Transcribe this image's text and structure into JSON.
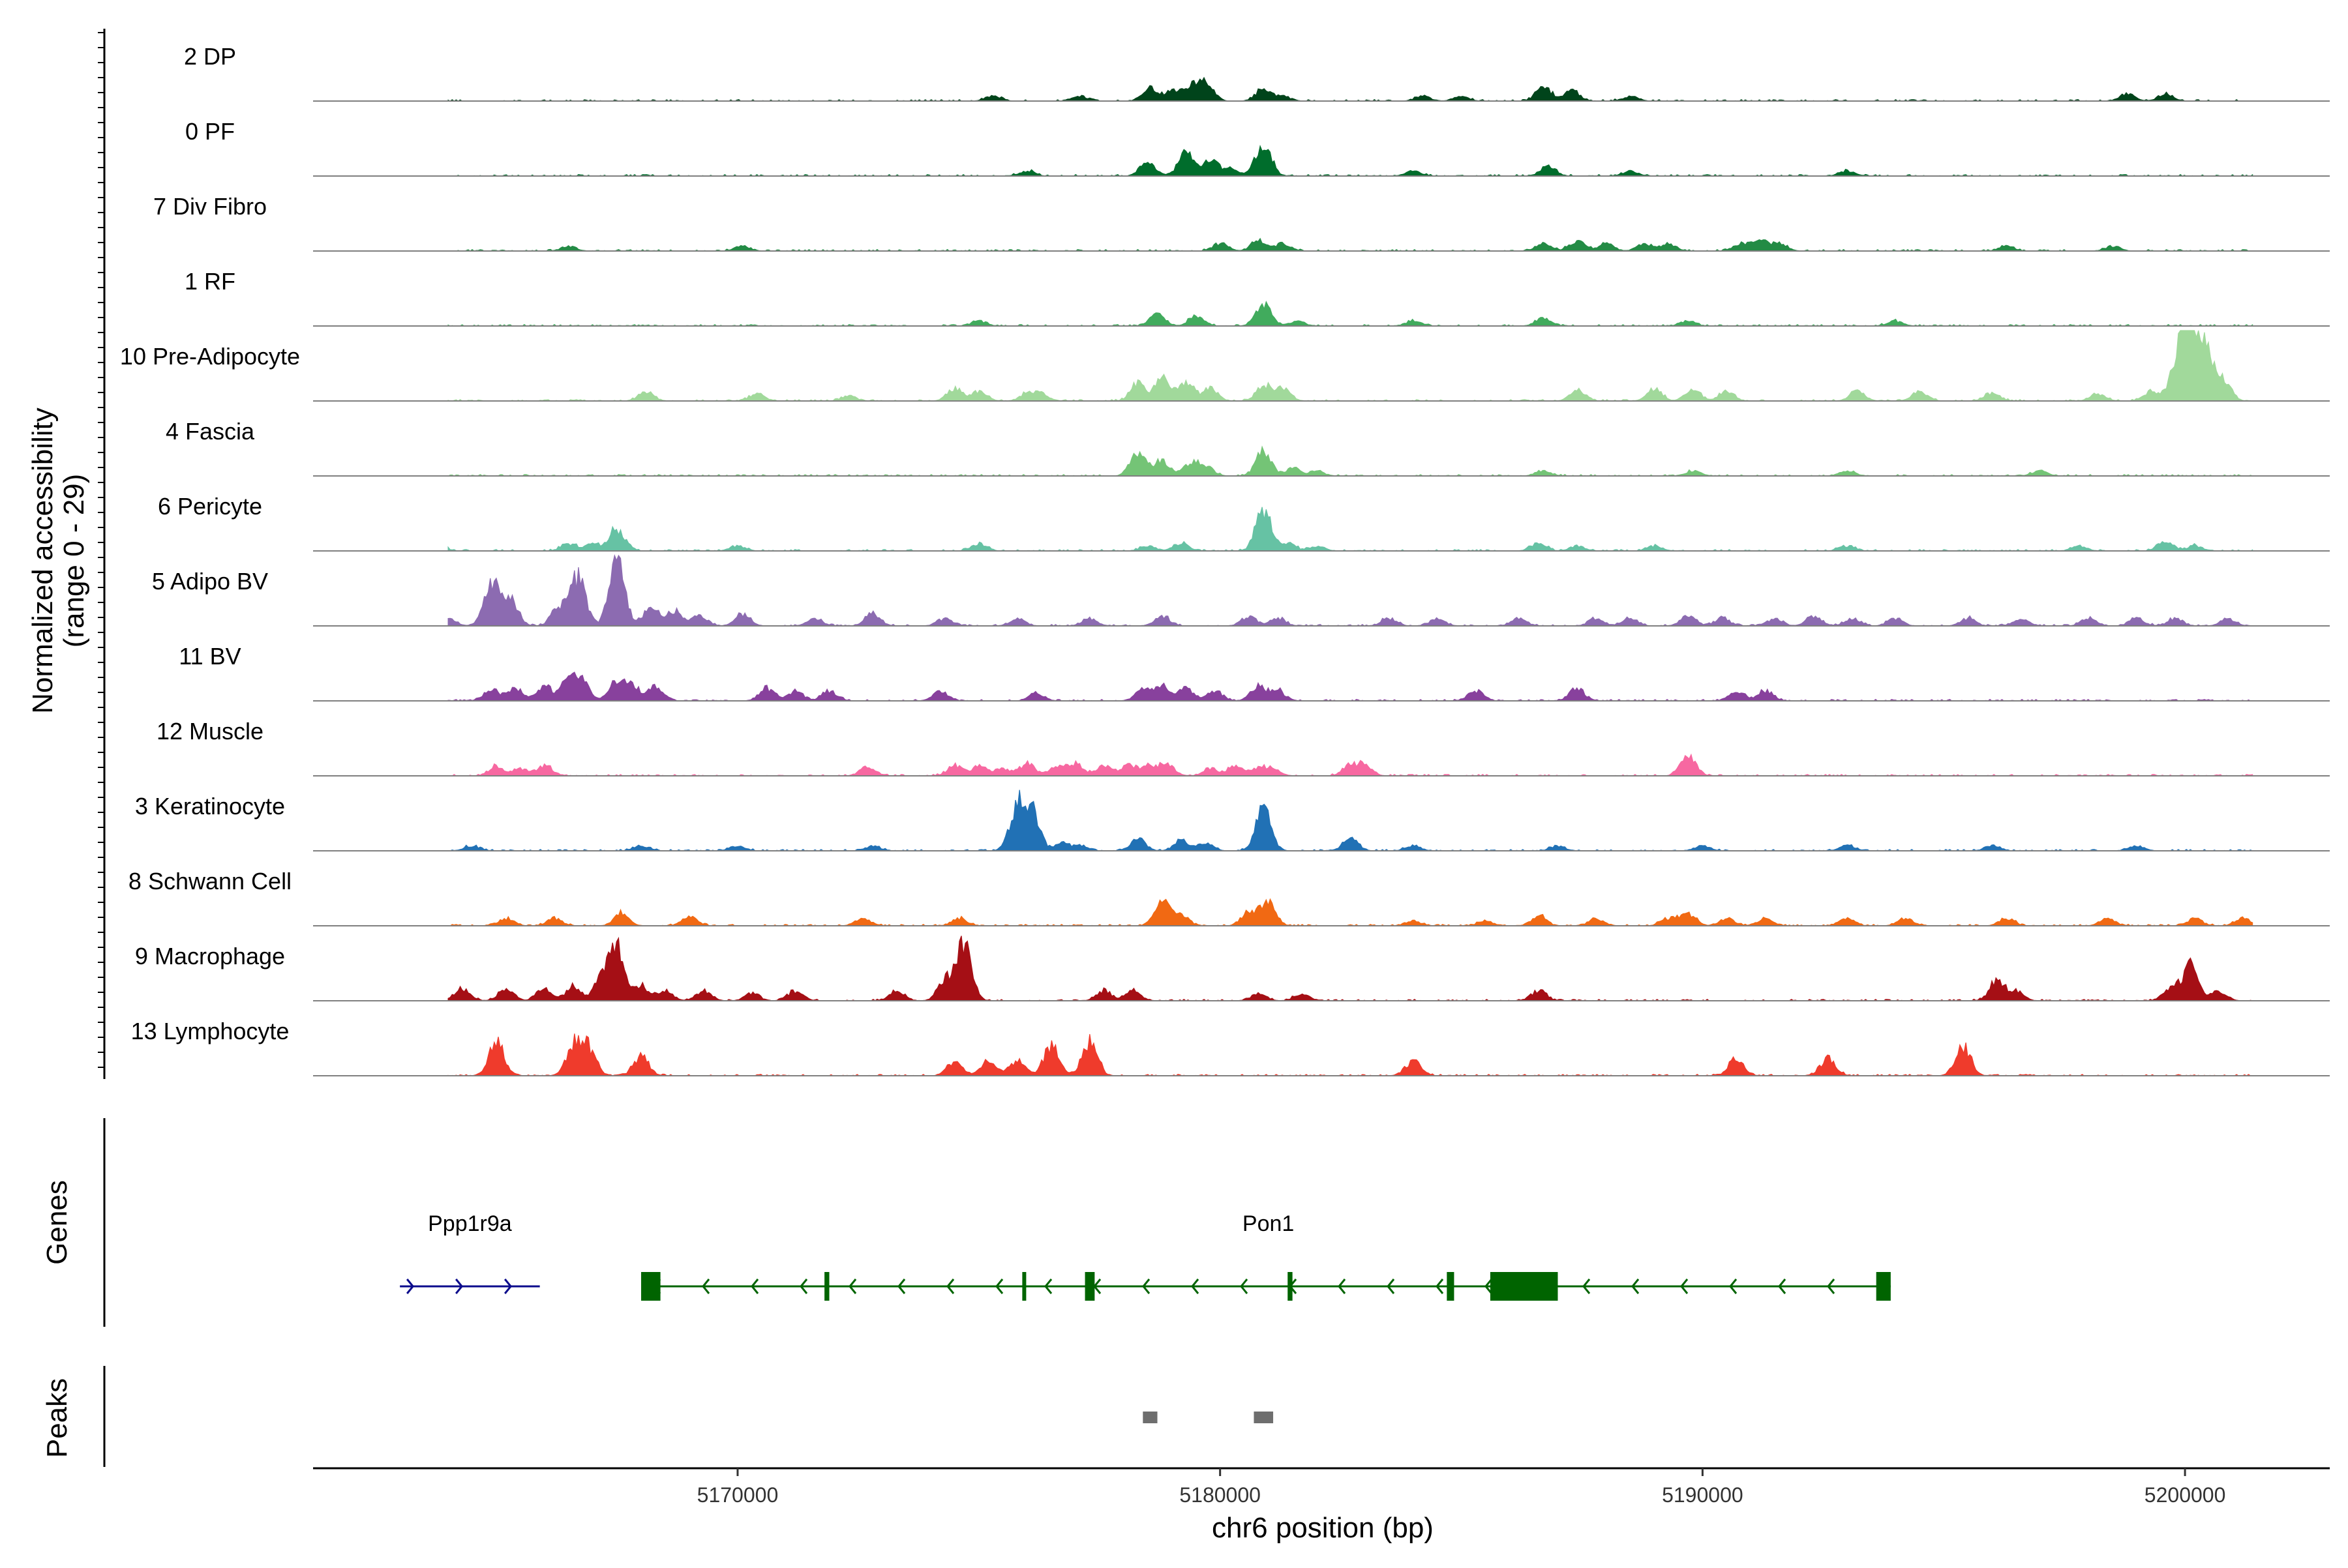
{
  "chart_data": {
    "type": "area",
    "title": "",
    "chromosome": "chr6",
    "xlabel": "chr6 position (bp)",
    "ylabel_line1": "Normalized accessibility",
    "ylabel_line2": "(range 0 - 29)",
    "y_range": [
      0,
      29
    ],
    "x_range": [
      5161200,
      5203000
    ],
    "x_ticks": [
      5170000,
      5180000,
      5190000,
      5200000
    ],
    "x_tick_labels": [
      "5170000",
      "5180000",
      "5190000",
      "5200000"
    ],
    "panel_labels": {
      "genes": "Genes",
      "peaks": "Peaks"
    },
    "series": [
      {
        "name": "2 DP",
        "color": "#00441b",
        "peaks": [
          [
            5179700,
            8
          ],
          [
            5179400,
            6
          ],
          [
            5178550,
            5
          ],
          [
            5180900,
            5
          ],
          [
            5186700,
            6
          ],
          [
            5187300,
            4
          ],
          [
            5179000,
            4
          ],
          [
            5175300,
            2
          ],
          [
            5177100,
            2
          ],
          [
            5184200,
            2
          ],
          [
            5198800,
            3
          ],
          [
            5199600,
            3
          ],
          [
            5181300,
            2
          ],
          [
            5185000,
            2
          ],
          [
            5188500,
            2
          ]
        ]
      },
      {
        "name": "0 PF",
        "color": "#006d2c",
        "peaks": [
          [
            5180900,
            14
          ],
          [
            5179300,
            10
          ],
          [
            5178500,
            6
          ],
          [
            5179800,
            6
          ],
          [
            5186800,
            4
          ],
          [
            5180200,
            3
          ],
          [
            5184000,
            2
          ],
          [
            5188500,
            2
          ],
          [
            5176000,
            2
          ],
          [
            5193000,
            2
          ]
        ]
      },
      {
        "name": "7 Div Fibro",
        "color": "#238b45",
        "peaks": [
          [
            5166500,
            2
          ],
          [
            5170100,
            2
          ],
          [
            5180000,
            3
          ],
          [
            5180800,
            4
          ],
          [
            5181300,
            3
          ],
          [
            5186700,
            3
          ],
          [
            5187400,
            4
          ],
          [
            5188000,
            3
          ],
          [
            5188800,
            3
          ],
          [
            5189300,
            3
          ],
          [
            5190800,
            3
          ],
          [
            5191200,
            4
          ],
          [
            5191600,
            3
          ],
          [
            5196300,
            2
          ],
          [
            5198500,
            2
          ]
        ]
      },
      {
        "name": "1 RF",
        "color": "#41ab5d",
        "peaks": [
          [
            5180900,
            9
          ],
          [
            5178700,
            5
          ],
          [
            5179500,
            4
          ],
          [
            5186700,
            3
          ],
          [
            5189700,
            2
          ],
          [
            5181600,
            2
          ],
          [
            5175000,
            2
          ],
          [
            5184000,
            2
          ],
          [
            5194000,
            2
          ]
        ]
      },
      {
        "name": "10 Pre-Adipocyte",
        "color": "#a1d99b",
        "peaks": [
          [
            5200200,
            26
          ],
          [
            5200000,
            18
          ],
          [
            5200500,
            14
          ],
          [
            5199800,
            10
          ],
          [
            5200800,
            8
          ],
          [
            5178300,
            7
          ],
          [
            5178800,
            9
          ],
          [
            5179300,
            8
          ],
          [
            5179800,
            5
          ],
          [
            5180900,
            6
          ],
          [
            5181300,
            5
          ],
          [
            5168100,
            4
          ],
          [
            5170400,
            3
          ],
          [
            5174500,
            5
          ],
          [
            5175000,
            4
          ],
          [
            5176000,
            3
          ],
          [
            5176300,
            3
          ],
          [
            5172300,
            2
          ],
          [
            5187400,
            4
          ],
          [
            5189000,
            5
          ],
          [
            5189800,
            5
          ],
          [
            5190500,
            4
          ],
          [
            5193200,
            4
          ],
          [
            5194500,
            4
          ],
          [
            5196000,
            3
          ],
          [
            5198200,
            3
          ],
          [
            5199300,
            4
          ]
        ]
      },
      {
        "name": "4 Fascia",
        "color": "#74c476",
        "peaks": [
          [
            5178300,
            10
          ],
          [
            5180900,
            10
          ],
          [
            5178800,
            6
          ],
          [
            5179400,
            5
          ],
          [
            5179700,
            4
          ],
          [
            5181500,
            3
          ],
          [
            5182000,
            2
          ],
          [
            5186700,
            2
          ],
          [
            5189800,
            2
          ],
          [
            5193000,
            2
          ],
          [
            5197000,
            2
          ]
        ]
      },
      {
        "name": "6 Pericyte",
        "color": "#66c2a4",
        "peaks": [
          [
            5180900,
            17
          ],
          [
            5167500,
            9
          ],
          [
            5167000,
            3
          ],
          [
            5166500,
            3
          ],
          [
            5170000,
            2
          ],
          [
            5175000,
            3
          ],
          [
            5178500,
            2
          ],
          [
            5179200,
            3
          ],
          [
            5181400,
            3
          ],
          [
            5182000,
            2
          ],
          [
            5186600,
            3
          ],
          [
            5187400,
            2
          ],
          [
            5189000,
            2
          ],
          [
            5193000,
            2
          ],
          [
            5197800,
            2
          ],
          [
            5199600,
            4
          ],
          [
            5200200,
            2
          ],
          [
            5163800,
            2
          ]
        ]
      },
      {
        "name": "5 Adipo BV",
        "color": "#8c6bb1",
        "peaks": [
          [
            5167500,
            28
          ],
          [
            5166700,
            20
          ],
          [
            5164900,
            18
          ],
          [
            5165300,
            10
          ],
          [
            5166300,
            8
          ],
          [
            5168200,
            8
          ],
          [
            5168700,
            6
          ],
          [
            5169200,
            4
          ],
          [
            5170100,
            5
          ],
          [
            5164000,
            3
          ],
          [
            5163400,
            3
          ],
          [
            5171600,
            3
          ],
          [
            5172800,
            5
          ],
          [
            5174300,
            3
          ],
          [
            5175800,
            3
          ],
          [
            5177300,
            3
          ],
          [
            5178800,
            4
          ],
          [
            5180600,
            4
          ],
          [
            5181200,
            3
          ],
          [
            5183500,
            3
          ],
          [
            5184500,
            3
          ],
          [
            5186200,
            3
          ],
          [
            5187800,
            3
          ],
          [
            5188500,
            3
          ],
          [
            5189700,
            4
          ],
          [
            5190400,
            3
          ],
          [
            5191500,
            3
          ],
          [
            5192300,
            4
          ],
          [
            5193100,
            3
          ],
          [
            5194000,
            3
          ],
          [
            5195500,
            3
          ],
          [
            5196600,
            3
          ],
          [
            5198000,
            3
          ],
          [
            5199000,
            3
          ],
          [
            5199800,
            3
          ],
          [
            5200900,
            3
          ]
        ]
      },
      {
        "name": "11 BV",
        "color": "#88419d",
        "peaks": [
          [
            5164900,
            5
          ],
          [
            5165400,
            5
          ],
          [
            5166000,
            6
          ],
          [
            5166500,
            8
          ],
          [
            5166800,
            7
          ],
          [
            5167500,
            8
          ],
          [
            5167800,
            6
          ],
          [
            5168300,
            6
          ],
          [
            5170600,
            5
          ],
          [
            5171200,
            4
          ],
          [
            5171900,
            4
          ],
          [
            5174200,
            4
          ],
          [
            5176200,
            3
          ],
          [
            5178400,
            5
          ],
          [
            5178800,
            6
          ],
          [
            5179300,
            5
          ],
          [
            5179900,
            4
          ],
          [
            5180800,
            6
          ],
          [
            5181200,
            4
          ],
          [
            5185300,
            4
          ],
          [
            5187400,
            5
          ],
          [
            5190700,
            4
          ],
          [
            5191300,
            4
          ]
        ]
      },
      {
        "name": "12 Muscle",
        "color": "#f768a1",
        "peaks": [
          [
            5165000,
            4
          ],
          [
            5165500,
            3
          ],
          [
            5166000,
            4
          ],
          [
            5172700,
            4
          ],
          [
            5174500,
            4
          ],
          [
            5175000,
            4
          ],
          [
            5175500,
            3
          ],
          [
            5176000,
            5
          ],
          [
            5176600,
            4
          ],
          [
            5177000,
            5
          ],
          [
            5177600,
            4
          ],
          [
            5178100,
            4
          ],
          [
            5178500,
            4
          ],
          [
            5178900,
            5
          ],
          [
            5179800,
            3
          ],
          [
            5180300,
            4
          ],
          [
            5180800,
            3
          ],
          [
            5181100,
            3
          ],
          [
            5182700,
            4
          ],
          [
            5183000,
            4
          ],
          [
            5189700,
            8
          ]
        ]
      },
      {
        "name": "3 Keratinocyte",
        "color": "#2171b5",
        "peaks": [
          [
            5175800,
            18
          ],
          [
            5176100,
            16
          ],
          [
            5180900,
            17
          ],
          [
            5178300,
            5
          ],
          [
            5179200,
            4
          ],
          [
            5179700,
            3
          ],
          [
            5182700,
            5
          ],
          [
            5176700,
            3
          ],
          [
            5177100,
            2
          ],
          [
            5172800,
            2
          ],
          [
            5170000,
            2
          ],
          [
            5168000,
            2
          ],
          [
            5184000,
            2
          ],
          [
            5187000,
            2
          ],
          [
            5190000,
            2
          ],
          [
            5193000,
            2
          ],
          [
            5196000,
            2
          ],
          [
            5199000,
            2
          ],
          [
            5164500,
            2
          ]
        ]
      },
      {
        "name": "8 Schwann Cell",
        "color": "#f16913",
        "peaks": [
          [
            5178800,
            10
          ],
          [
            5181000,
            9
          ],
          [
            5180600,
            6
          ],
          [
            5179200,
            4
          ],
          [
            5167600,
            5
          ],
          [
            5169000,
            4
          ],
          [
            5166200,
            3
          ],
          [
            5172600,
            3
          ],
          [
            5174600,
            3
          ],
          [
            5165200,
            3
          ],
          [
            5189700,
            5
          ],
          [
            5189300,
            3
          ],
          [
            5186600,
            4
          ],
          [
            5187800,
            3
          ],
          [
            5190500,
            3
          ],
          [
            5191300,
            3
          ],
          [
            5193000,
            3
          ],
          [
            5194200,
            3
          ],
          [
            5196300,
            3
          ],
          [
            5198400,
            3
          ],
          [
            5200200,
            3
          ],
          [
            5201200,
            3
          ],
          [
            5184000,
            2
          ],
          [
            5185500,
            2
          ]
        ]
      },
      {
        "name": "9 Macrophage",
        "color": "#a50f15",
        "peaks": [
          [
            5174700,
            23
          ],
          [
            5167500,
            20
          ],
          [
            5167200,
            10
          ],
          [
            5165200,
            5
          ],
          [
            5164300,
            5
          ],
          [
            5166000,
            5
          ],
          [
            5166600,
            6
          ],
          [
            5168000,
            6
          ],
          [
            5168500,
            4
          ],
          [
            5169300,
            4
          ],
          [
            5170300,
            3
          ],
          [
            5171200,
            4
          ],
          [
            5173300,
            4
          ],
          [
            5174300,
            8
          ],
          [
            5177600,
            4
          ],
          [
            5178200,
            4
          ],
          [
            5180800,
            3
          ],
          [
            5181700,
            3
          ],
          [
            5186600,
            4
          ],
          [
            5196100,
            8
          ],
          [
            5196500,
            4
          ],
          [
            5199700,
            5
          ],
          [
            5200100,
            14
          ],
          [
            5200700,
            4
          ]
        ]
      },
      {
        "name": "13 Lymphocyte",
        "color": "#ef3b2c",
        "peaks": [
          [
            5165000,
            14
          ],
          [
            5166600,
            12
          ],
          [
            5166900,
            11
          ],
          [
            5168000,
            8
          ],
          [
            5174500,
            6
          ],
          [
            5175200,
            6
          ],
          [
            5175800,
            6
          ],
          [
            5176500,
            12
          ],
          [
            5177300,
            14
          ],
          [
            5184000,
            6
          ],
          [
            5190700,
            7
          ],
          [
            5192600,
            7
          ],
          [
            5195400,
            12
          ]
        ]
      }
    ],
    "genes": [
      {
        "name": "Ppp1r9a",
        "color": "#0b0b8c",
        "strand": "+",
        "start": 5163000,
        "end": 5165900,
        "exons": []
      },
      {
        "name": "Pon1",
        "color": "#006400",
        "strand": "-",
        "start": 5168000,
        "end": 5193900,
        "exons": [
          [
            5168000,
            5168400
          ],
          [
            5171800,
            5171900
          ],
          [
            5175900,
            5175950
          ],
          [
            5177200,
            5177400
          ],
          [
            5181400,
            5181500
          ],
          [
            5184700,
            5184850
          ],
          [
            5185600,
            5187000
          ],
          [
            5193600,
            5193900
          ]
        ],
        "label_pos": 5181000
      }
    ],
    "peak_regions": [
      [
        5178400,
        5178700
      ],
      [
        5180700,
        5181100
      ]
    ]
  }
}
